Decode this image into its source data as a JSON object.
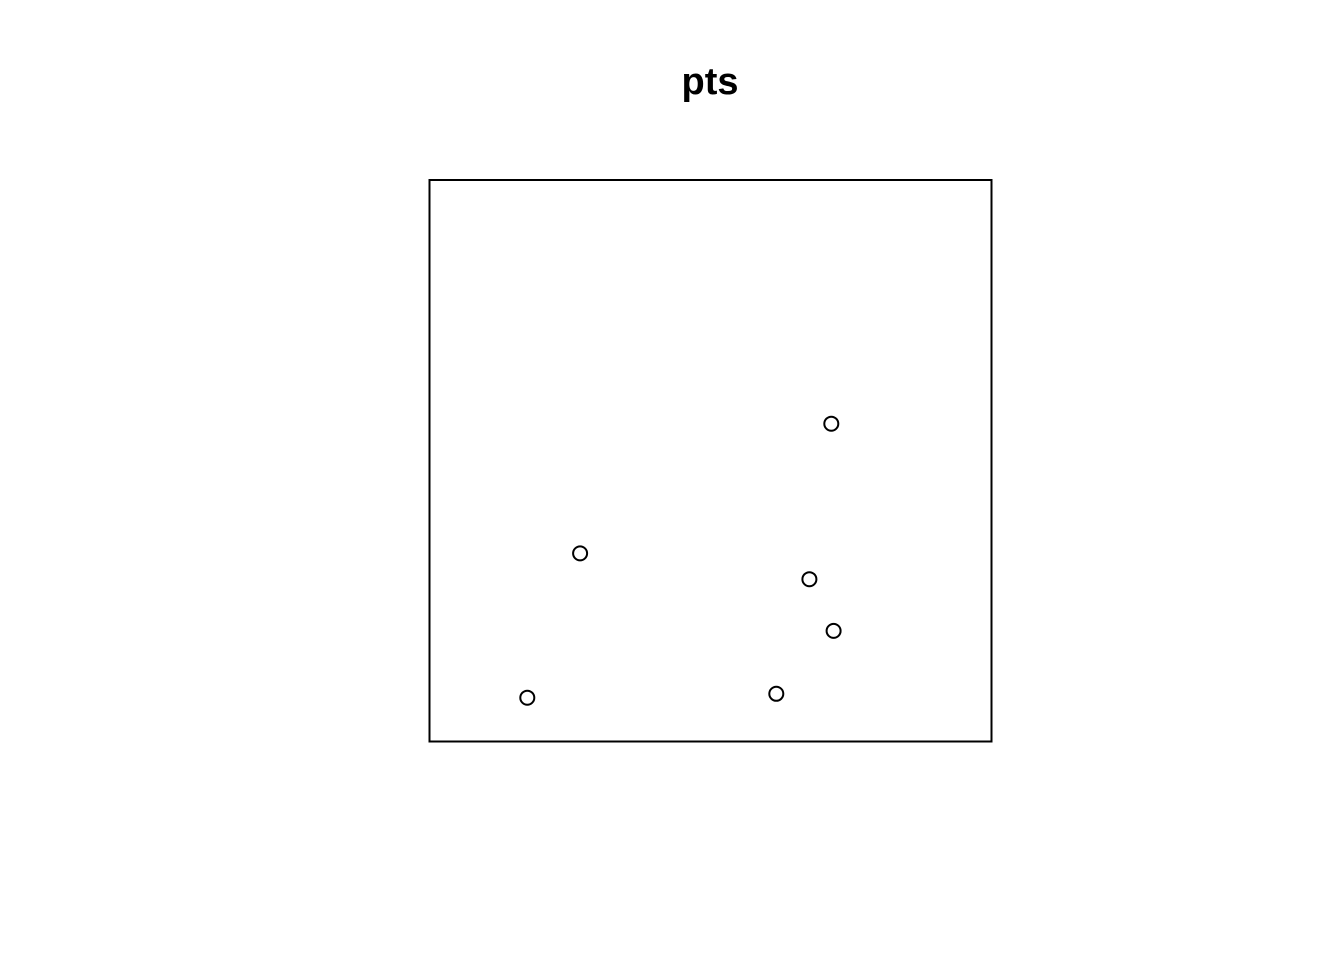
{
  "chart_data": {
    "type": "scatter",
    "title": "pts",
    "xlabel": "",
    "ylabel": "",
    "xlim": [
      0,
      1
    ],
    "ylim": [
      0,
      1
    ],
    "axes_shown": false,
    "grid": false,
    "marker": "open-circle",
    "colors": {
      "marker": "#000000",
      "frame": "#000000",
      "background": "#ffffff"
    },
    "points": [
      {
        "x": 0.715,
        "y": 0.566
      },
      {
        "x": 0.268,
        "y": 0.335
      },
      {
        "x": 0.676,
        "y": 0.289
      },
      {
        "x": 0.719,
        "y": 0.197
      },
      {
        "x": 0.617,
        "y": 0.085
      },
      {
        "x": 0.174,
        "y": 0.078
      }
    ]
  }
}
